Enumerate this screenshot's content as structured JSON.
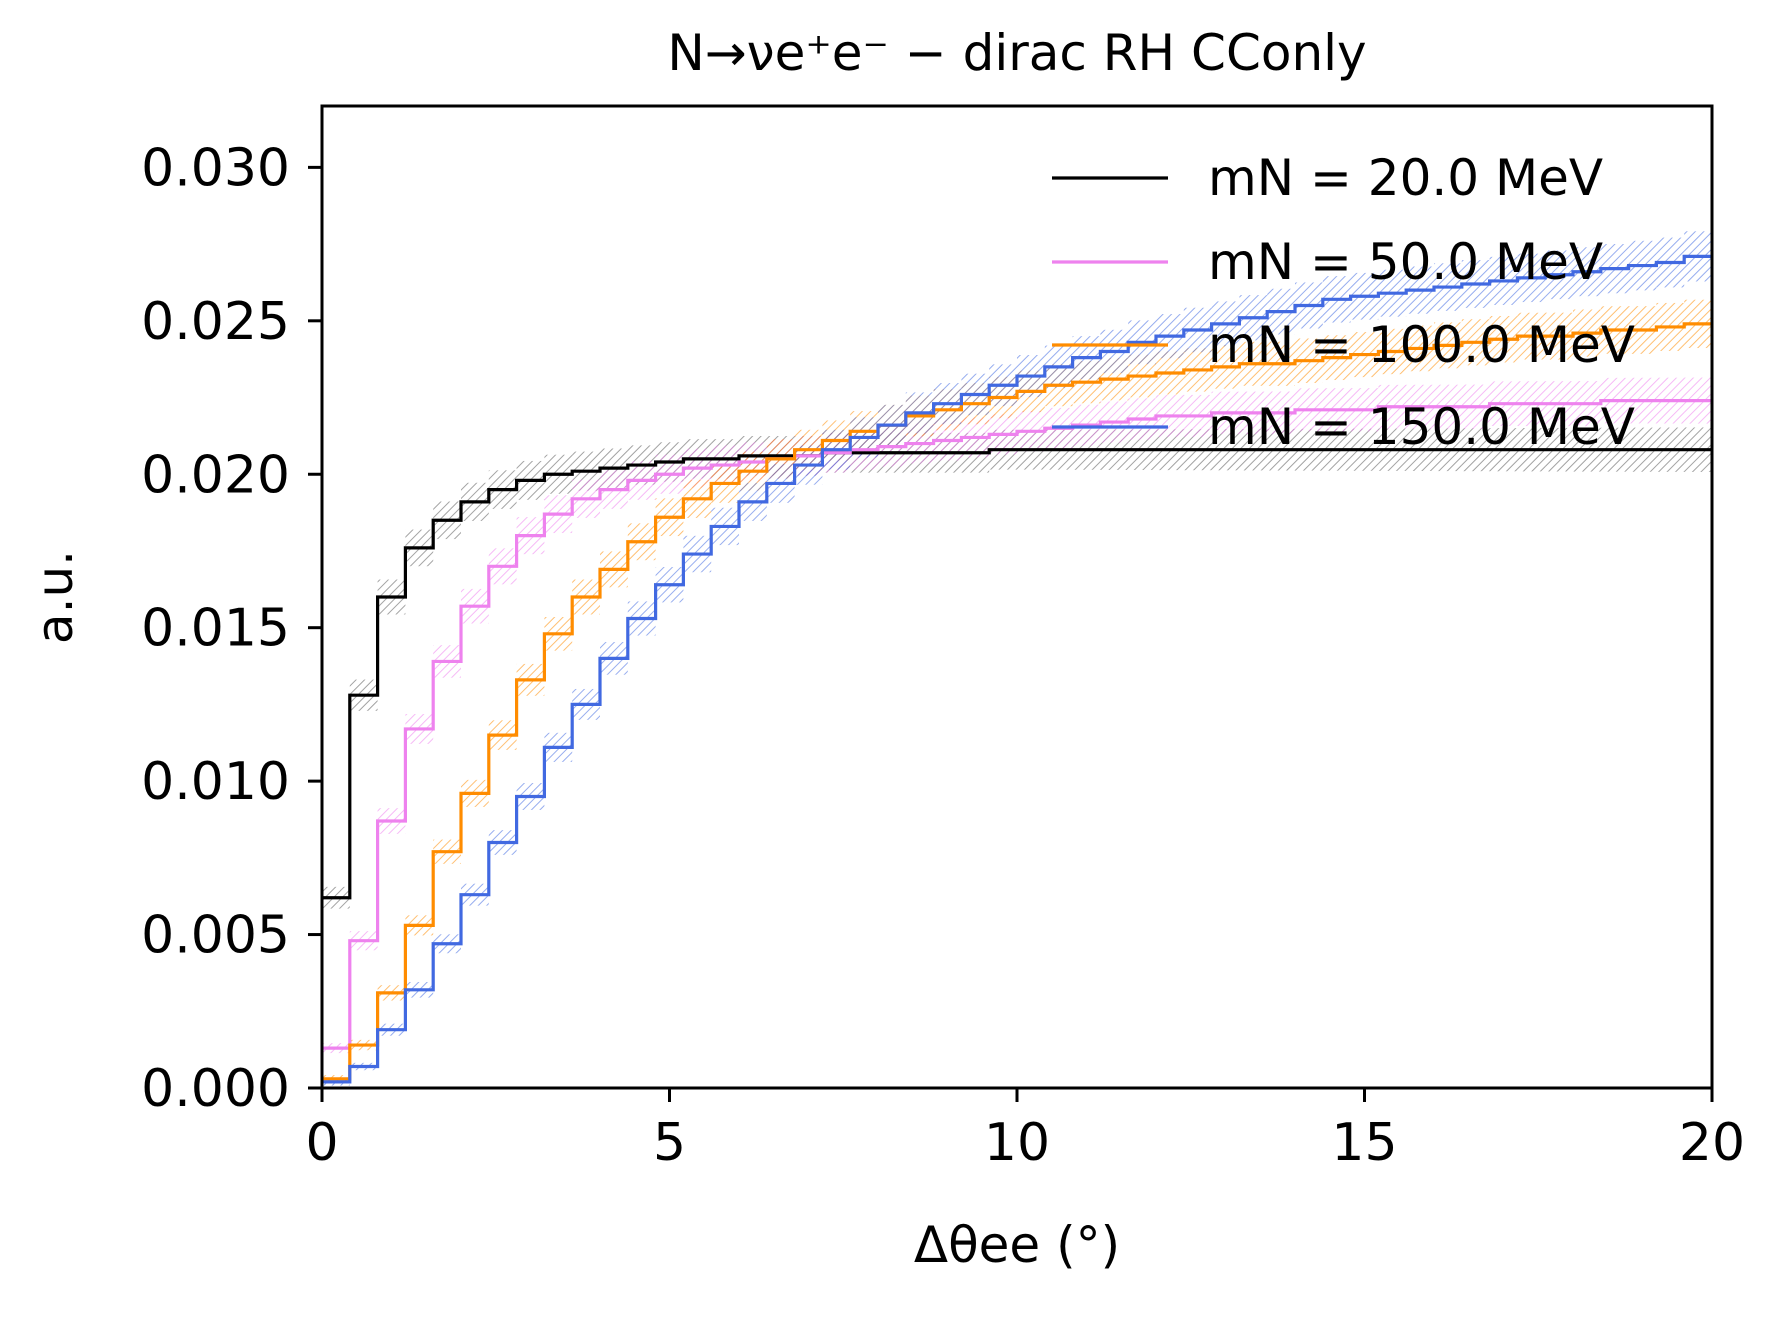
{
  "chart_data": {
    "type": "line",
    "step": true,
    "title": "N→νe⁺e⁻ − dirac RH CConly",
    "xlabel": "Δθee (°)",
    "ylabel": "a.u.",
    "xlim": [
      0,
      20
    ],
    "ylim": [
      0,
      0.032
    ],
    "xticks": [
      0,
      5,
      10,
      15,
      20
    ],
    "xtick_labels": [
      "0",
      "5",
      "10",
      "15",
      "20"
    ],
    "yticks": [
      0,
      0.005,
      0.01,
      0.015,
      0.02,
      0.025,
      0.03
    ],
    "ytick_labels": [
      "0.000",
      "0.005",
      "0.010",
      "0.015",
      "0.020",
      "0.025",
      "0.030"
    ],
    "grid": false,
    "legend": "top-right",
    "bin_width": 0.4,
    "series": [
      {
        "name": "m_N = 20.0 MeV",
        "legend_label": "mN = 20.0 MeV",
        "color": "#000000",
        "band_color": "#555555",
        "values": [
          0.0062,
          0.0128,
          0.016,
          0.0176,
          0.0185,
          0.0191,
          0.0195,
          0.0198,
          0.02,
          0.0201,
          0.0202,
          0.0203,
          0.0204,
          0.0205,
          0.0205,
          0.0206,
          0.0206,
          0.0206,
          0.0207,
          0.0207,
          0.0207,
          0.0207,
          0.0207,
          0.0207,
          0.0208,
          0.0208,
          0.0208,
          0.0208,
          0.0208,
          0.0208,
          0.0208,
          0.0208,
          0.0208,
          0.0208,
          0.0208,
          0.0208,
          0.0208,
          0.0208,
          0.0208,
          0.0208,
          0.0208,
          0.0208,
          0.0208,
          0.0208,
          0.0208,
          0.0208,
          0.0208,
          0.0208,
          0.0208,
          0.0208
        ]
      },
      {
        "name": "m_N = 50.0 MeV",
        "legend_label": "mN = 50.0 MeV",
        "color": "#ee82ee",
        "band_color": "#ee82ee",
        "values": [
          0.0013,
          0.0048,
          0.0087,
          0.0117,
          0.0139,
          0.0157,
          0.017,
          0.018,
          0.0187,
          0.0192,
          0.0195,
          0.0198,
          0.02,
          0.0202,
          0.0203,
          0.0204,
          0.0205,
          0.0206,
          0.0207,
          0.0208,
          0.0209,
          0.021,
          0.0211,
          0.0212,
          0.0213,
          0.0214,
          0.0215,
          0.0216,
          0.0217,
          0.0218,
          0.0219,
          0.0219,
          0.022,
          0.022,
          0.022,
          0.0221,
          0.0221,
          0.0221,
          0.0222,
          0.0222,
          0.0222,
          0.0222,
          0.0223,
          0.0223,
          0.0223,
          0.0223,
          0.0224,
          0.0224,
          0.0224,
          0.0224
        ]
      },
      {
        "name": "m_N = 100.0 MeV",
        "legend_label": "mN = 100.0 MeV",
        "color": "#ff8c00",
        "band_color": "#ff8c00",
        "values": [
          0.0003,
          0.0014,
          0.0031,
          0.0053,
          0.0077,
          0.0096,
          0.0115,
          0.0133,
          0.0148,
          0.016,
          0.0169,
          0.0178,
          0.0186,
          0.0192,
          0.0197,
          0.0201,
          0.0205,
          0.0208,
          0.0211,
          0.0214,
          0.0216,
          0.0219,
          0.0221,
          0.0223,
          0.0225,
          0.0227,
          0.0229,
          0.023,
          0.0231,
          0.0232,
          0.0233,
          0.0234,
          0.0235,
          0.0236,
          0.0236,
          0.0237,
          0.0238,
          0.0239,
          0.024,
          0.0241,
          0.0242,
          0.0243,
          0.0244,
          0.0245,
          0.0245,
          0.0246,
          0.0247,
          0.0247,
          0.0248,
          0.0249
        ]
      },
      {
        "name": "m_N = 150.0 MeV",
        "legend_label": "mN = 150.0 MeV",
        "color": "#4169e1",
        "band_color": "#4169e1",
        "values": [
          0.0002,
          0.0007,
          0.0019,
          0.0032,
          0.0047,
          0.0063,
          0.008,
          0.0095,
          0.0111,
          0.0125,
          0.014,
          0.0153,
          0.0164,
          0.0174,
          0.0183,
          0.0191,
          0.0197,
          0.0203,
          0.0208,
          0.0212,
          0.0216,
          0.022,
          0.0223,
          0.0226,
          0.0229,
          0.0232,
          0.0235,
          0.0238,
          0.024,
          0.0243,
          0.0245,
          0.0247,
          0.0249,
          0.0251,
          0.0253,
          0.0255,
          0.0257,
          0.0258,
          0.0259,
          0.026,
          0.0261,
          0.0262,
          0.0263,
          0.0264,
          0.0265,
          0.0266,
          0.0267,
          0.0268,
          0.0269,
          0.0271
        ]
      }
    ]
  }
}
